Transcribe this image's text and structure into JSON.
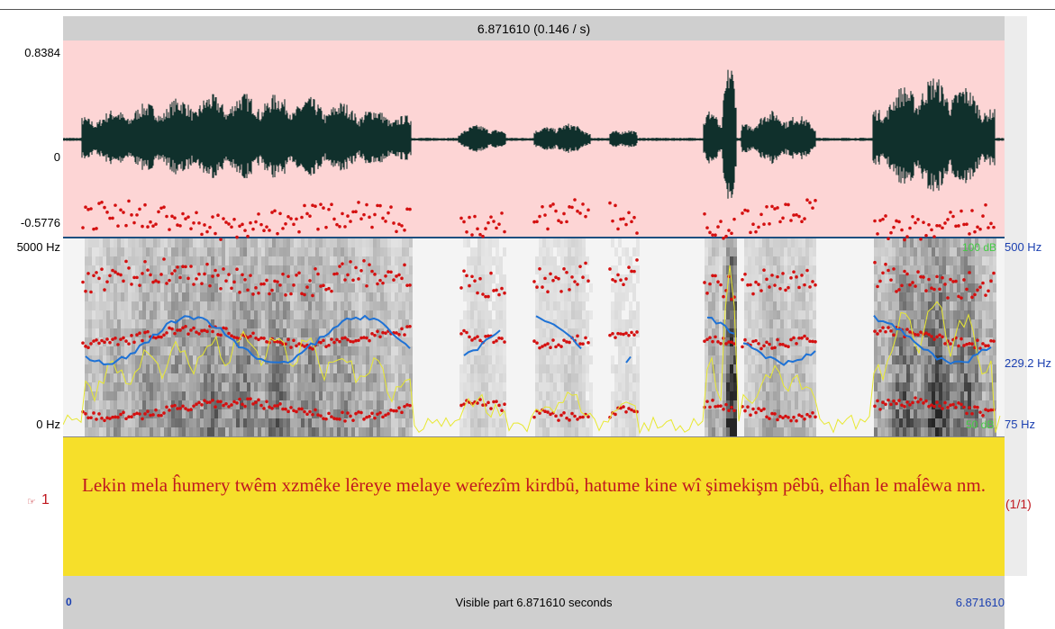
{
  "header": {
    "title": "6.871610 (0.146 / s)"
  },
  "waveform": {
    "max": "0.8384",
    "zero": "0",
    "min": "-0.5776"
  },
  "spectrogram": {
    "top": "5000 Hz",
    "bottom": "0 Hz",
    "intensity_top": "100 dB",
    "intensity_bottom": "50 dB",
    "pitch_top": "500 Hz",
    "pitch_mid": "229.2 Hz",
    "pitch_bottom": "75 Hz"
  },
  "tier": {
    "number": "1",
    "text": "Lekin mela ĥumery twêm xzmêke lêreye melaye weŕezîm kirdbû, hatume kine wî şimekişm pêbû, elĥan le maĺêwa nm.",
    "count": "(1/1)"
  },
  "footer": {
    "start": "0",
    "label": "Visible part 6.871610 seconds",
    "end": "6.871610"
  }
}
